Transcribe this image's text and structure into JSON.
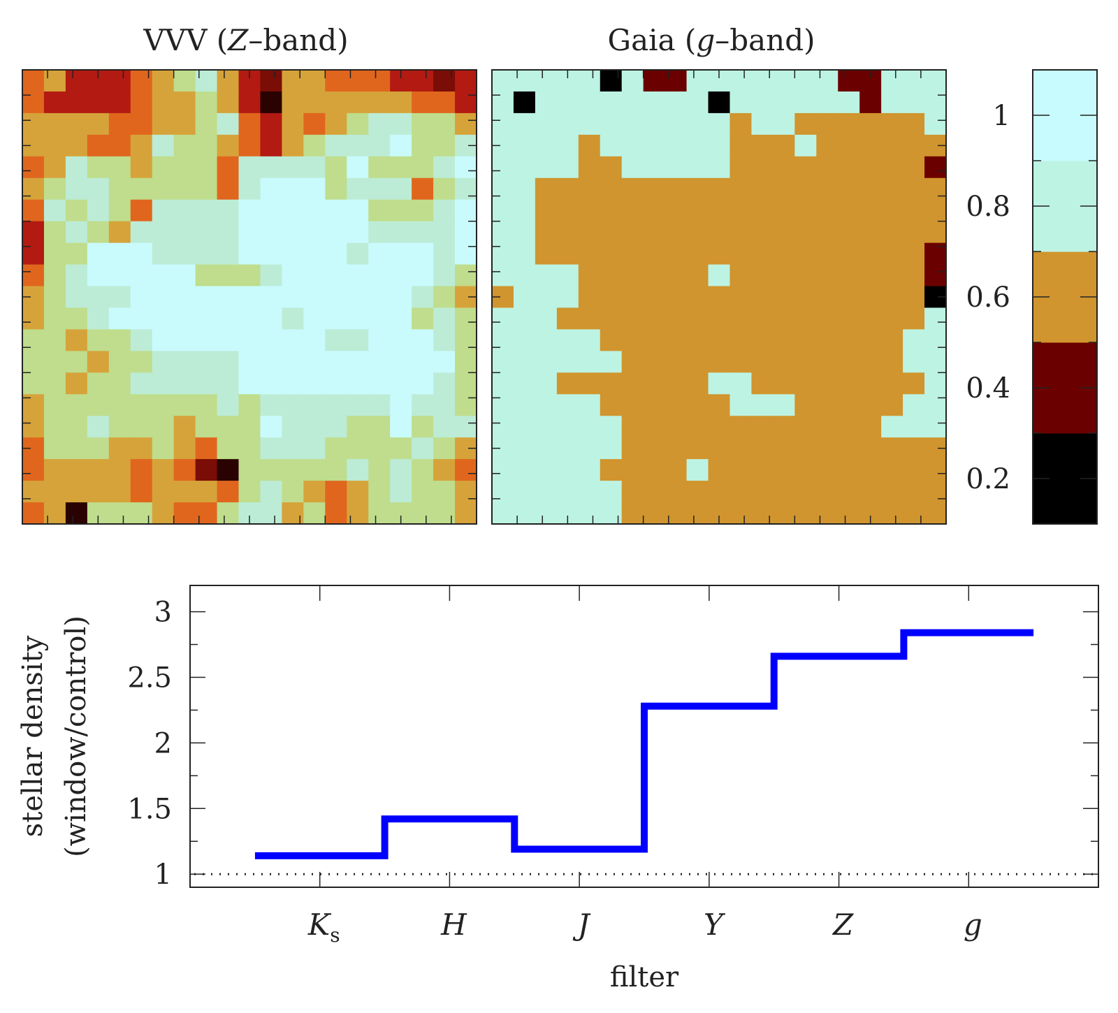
{
  "chart_data": [
    {
      "type": "heatmap",
      "title": "VVV (Z–band)",
      "title_parts": [
        "VVV (",
        "Z",
        "–band)"
      ],
      "grid": [
        "EDFFFEDCBDFGDDEEEFFGF",
        "EFFFFEDDCDFHDDDDDDEEF",
        "DDDDEEDDCBEFDEDCBBCCD",
        "DDDEEDBCCDEFDCBBBACCB",
        "EDBCCDCCCEBBBBCACCCBA",
        "DCBBCCCCCEBAAACBBBECB",
        "EBCBCEBBBBAAAAAACCCBA",
        "FCBCDBBBBBAAAAAABBBBA",
        "FCCAAABBBBAAAAABAAABA",
        "ECBAAAAACCCBAAAAAAABC",
        "DCBBBAAAAAAAAAAAAABCD",
        "DCCBAAAAAAAABAAAAACBC",
        "CCDCCBAAAAAAAABBAAABC",
        "CCCDCCBBBBAAAAAAAAAAC",
        "CCDCCBBBBBAAAAAAAAABC",
        "DCCCCCCCCBCBBBBBBABBC",
        "DCCBCCCDCCCABBBCCACBB",
        "ECCCDDCDECCBBBCCCCBCD",
        "EDDDDEDEGHCCCCCBCBCDE",
        "DDDDDEDDDECBCDEDCBCCD",
        "EDHCCCDEECBBDCEDCCCCD"
      ],
      "color_key": {
        "A": "#c9fbfd",
        "B": "#bcecd6",
        "C": "#bfdd8c",
        "D": "#d6a33a",
        "E": "#e0661e",
        "F": "#b21a12",
        "G": "#7a0d06",
        "H": "#2a0201"
      }
    },
    {
      "type": "heatmap",
      "title": "Gaia (g–band)",
      "title_parts": [
        "Gaia (",
        "g",
        "–band)"
      ],
      "grid": [
        "CCCCCDCAACCCCCCCAACCC",
        "CDCCCCCCCCDCCCCCCACCC",
        "CCCCCCCCCCCBCCBBBBBBC",
        "CCCCBCCCCCCBBBCBBBBBB",
        "CCCCBBCCCCCBBBBBBBBBA",
        "CCBBBBBBBBBBBBBBBBBBB",
        "CCBBBBBBBBBBBBBBBBBBB",
        "CCBBBBBBBBBBBBBBBBBBB",
        "CCBBBBBBBBBBBBBBBBBBA",
        "CCCCBBBBBBCBBBBBBBBBA",
        "BCCCBBBBBBBBBBBBBBBBD",
        "CCCBBBBBBBBBBBBBBBBBC",
        "CCCCCBBBBBBBBBBBBBBCC",
        "CCCCCCBBBBBBBBBBBBBCC",
        "CCCBBBBBBBCCBBBBBBBBC",
        "CCCCCBBBBBBCCCBBBBBCC",
        "CCCCCCBBBBBBBBBBBBCCC",
        "CCCCCCBBBBBBBBBBBBBBB",
        "CCCCCBBBBCBBBBBBBBBBB",
        "CCCCCCBBBBBBBBBBBBBBB",
        "CCCCCCBBBBBBBBBBBBBBB"
      ],
      "color_key": {
        "A": "#6b0000",
        "B": "#d0952e",
        "C": "#bdf3e3",
        "D": "#000000"
      }
    },
    {
      "type": "heatmap-colorbar",
      "band_colors": [
        "#000000",
        "#6b0000",
        "#d0952e",
        "#bdf3e3",
        "#c8fbfd"
      ],
      "range": [
        0.1,
        1.1
      ],
      "tick_values": [
        0.2,
        0.4,
        0.6,
        0.8,
        1.0
      ],
      "tick_labels": [
        "0.2",
        "0.4",
        "0.6",
        "0.8",
        "1"
      ]
    },
    {
      "type": "line",
      "step": true,
      "categories": [
        "K",
        "H",
        "J",
        "Y",
        "Z",
        "g"
      ],
      "category_subscripts": [
        "s",
        "",
        "",
        "",
        "",
        ""
      ],
      "values": [
        1.14,
        1.42,
        1.19,
        2.28,
        2.66,
        2.84
      ],
      "reference_line": 1.0,
      "color": "#0000ff",
      "xlabel": "filter",
      "ylabel_lines": [
        "stellar density",
        "(window/control)"
      ],
      "ylim": [
        0.9,
        3.2
      ],
      "ytick_values": [
        1,
        1.5,
        2,
        2.5,
        3
      ],
      "ytick_labels": [
        "1",
        "1.5",
        "2",
        "2.5",
        "3"
      ]
    }
  ]
}
